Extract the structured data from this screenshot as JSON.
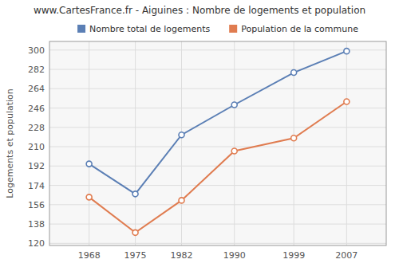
{
  "chart_data": {
    "type": "line",
    "title": "www.CartesFrance.fr - Aiguines : Nombre de logements et population",
    "ylabel": "Logements et population",
    "x": [
      1968,
      1975,
      1982,
      1990,
      1999,
      2007
    ],
    "series": [
      {
        "name": "Nombre total de logements",
        "color": "#5b7fb5",
        "values": [
          194,
          166,
          221,
          249,
          279,
          299
        ]
      },
      {
        "name": "Population de la commune",
        "color": "#e07c50",
        "values": [
          163,
          130,
          160,
          206,
          218,
          252
        ]
      }
    ],
    "xlim": [
      1962,
      2013
    ],
    "xticks": [
      1968,
      1975,
      1982,
      1990,
      1999,
      2007
    ],
    "ylim": [
      118,
      308
    ],
    "yticks": [
      120,
      138,
      156,
      174,
      192,
      210,
      228,
      246,
      264,
      282,
      300
    ],
    "grid": true,
    "legend": "top",
    "marker": "circle"
  }
}
